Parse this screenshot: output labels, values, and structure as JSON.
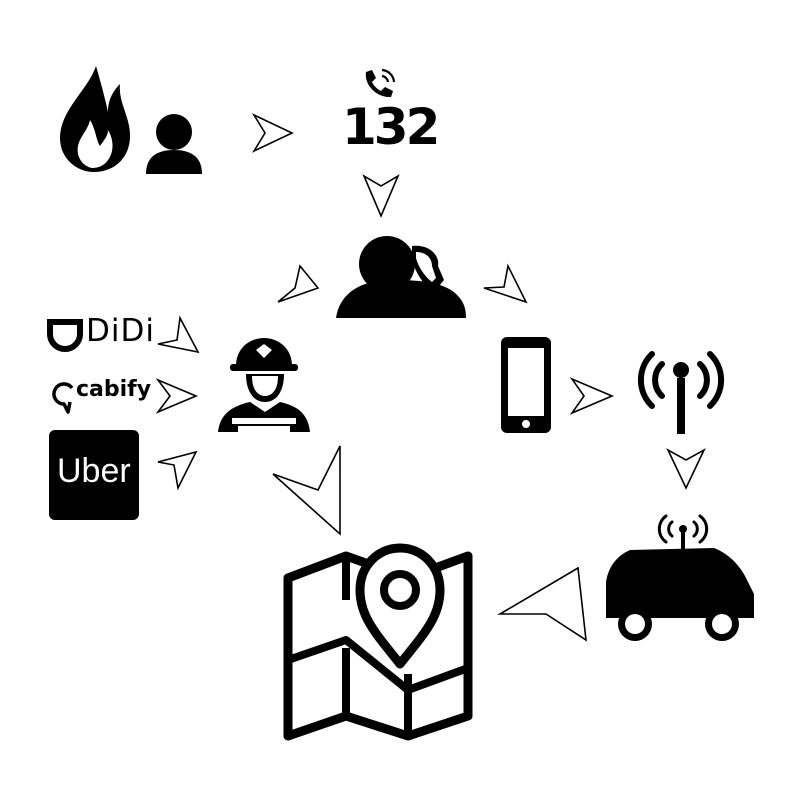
{
  "nodes": {
    "emergency_number": "132",
    "didi_logo": "DiDi",
    "cabify_logo": "cabify",
    "uber_logo": "Uber"
  },
  "icons": [
    "fire-icon",
    "person-icon",
    "phone-call-icon",
    "dispatcher-icon",
    "firefighter-icon",
    "smartphone-icon",
    "antenna-icon",
    "car-icon",
    "map-pin-icon"
  ],
  "colors": {
    "ink": "#000000",
    "background": "#ffffff"
  }
}
